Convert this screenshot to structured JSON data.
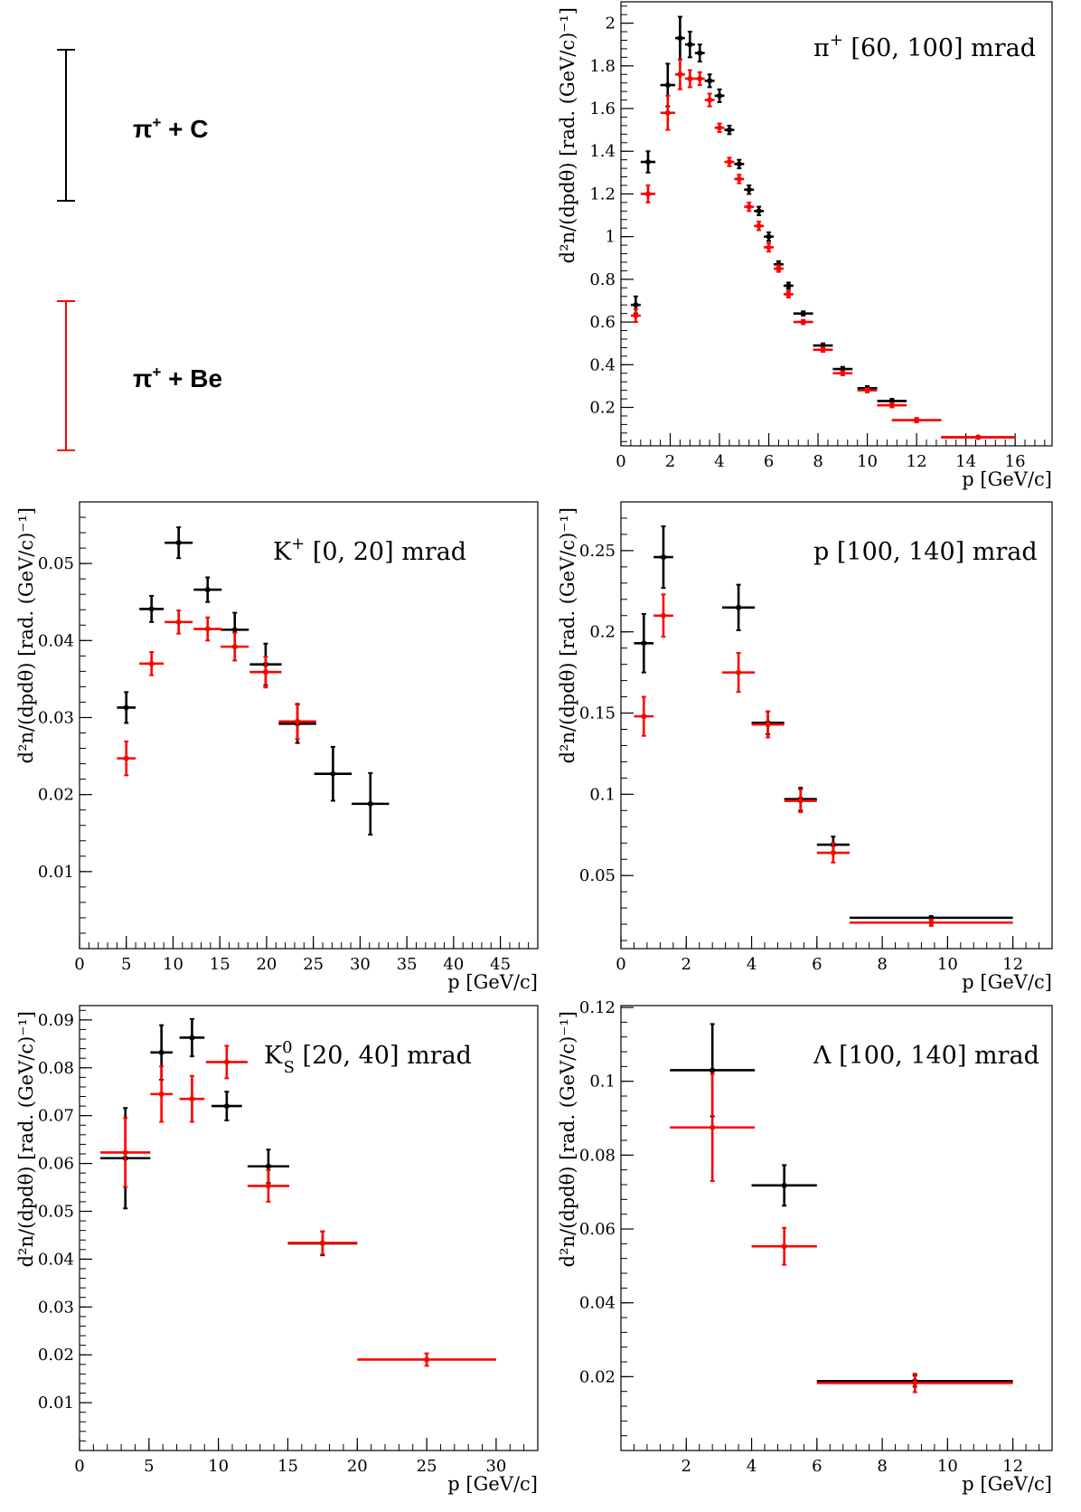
{
  "legend": {
    "entries": [
      {
        "particle": "π",
        "charge": "+",
        "suffix": " + C",
        "color": "#000000"
      },
      {
        "particle": "π",
        "charge": "+",
        "suffix": " + Be",
        "color": "#ff0000"
      }
    ]
  },
  "chart_data": [
    {
      "type": "scatter",
      "title_main": "π",
      "title_sup": "+",
      "title_sub": "",
      "title_rest": " [60, 100] mrad",
      "xlabel": "p [GeV/c]",
      "ylabel": "d²n/(dpdθ) [rad. (GeV/c)⁻¹]",
      "xlim": [
        0,
        17.5
      ],
      "ylim": [
        0.02,
        2.1
      ],
      "xticks": [
        0,
        2,
        4,
        6,
        8,
        10,
        12,
        14,
        16
      ],
      "xtick_labels": [
        "0",
        "2",
        "4",
        "6",
        "8",
        "10",
        "12",
        "14",
        "16"
      ],
      "yticks": [
        0.2,
        0.4,
        0.6,
        0.8,
        1,
        1.2,
        1.4,
        1.6,
        1.8,
        2
      ],
      "ytick_labels": [
        "0.2",
        "0.4",
        "0.6",
        "0.8",
        "1",
        "1.2",
        "1.4",
        "1.6",
        "1.8",
        "2"
      ],
      "series": [
        {
          "name": "π+ + C",
          "color": "#000000",
          "x": [
            0.6,
            1.1,
            1.9,
            2.4,
            2.8,
            3.2,
            3.6,
            4.0,
            4.4,
            4.8,
            5.2,
            5.6,
            6.0,
            6.4,
            6.8,
            7.4,
            8.2,
            9.0,
            10.0,
            11.0,
            12.0,
            14.5
          ],
          "y": [
            0.68,
            1.35,
            1.71,
            1.93,
            1.9,
            1.86,
            1.73,
            1.66,
            1.5,
            1.34,
            1.22,
            1.12,
            1.0,
            0.87,
            0.77,
            0.64,
            0.49,
            0.38,
            0.29,
            0.23,
            0.14,
            0.06
          ],
          "xerr": [
            0.2,
            0.3,
            0.3,
            0.2,
            0.2,
            0.2,
            0.2,
            0.2,
            0.2,
            0.2,
            0.2,
            0.2,
            0.2,
            0.2,
            0.2,
            0.4,
            0.4,
            0.4,
            0.4,
            0.6,
            1.0,
            1.5
          ],
          "yerr": [
            0.04,
            0.05,
            0.1,
            0.1,
            0.06,
            0.04,
            0.03,
            0.03,
            0.02,
            0.02,
            0.02,
            0.02,
            0.02,
            0.015,
            0.015,
            0.01,
            0.01,
            0.01,
            0.01,
            0.01,
            0.01,
            0.005
          ]
        },
        {
          "name": "π+ + Be",
          "color": "#ff0000",
          "x": [
            0.6,
            1.1,
            1.9,
            2.4,
            2.8,
            3.2,
            3.6,
            4.0,
            4.4,
            4.8,
            5.2,
            5.6,
            6.0,
            6.4,
            6.8,
            7.4,
            8.2,
            9.0,
            10.0,
            11.0,
            12.0,
            14.5
          ],
          "y": [
            0.63,
            1.2,
            1.58,
            1.76,
            1.74,
            1.74,
            1.64,
            1.51,
            1.35,
            1.27,
            1.14,
            1.05,
            0.95,
            0.85,
            0.73,
            0.6,
            0.47,
            0.36,
            0.28,
            0.21,
            0.14,
            0.06
          ],
          "xerr": [
            0.2,
            0.3,
            0.3,
            0.2,
            0.2,
            0.2,
            0.2,
            0.2,
            0.2,
            0.2,
            0.2,
            0.2,
            0.2,
            0.2,
            0.2,
            0.4,
            0.4,
            0.4,
            0.4,
            0.6,
            1.0,
            1.5
          ],
          "yerr": [
            0.03,
            0.04,
            0.08,
            0.07,
            0.04,
            0.03,
            0.03,
            0.02,
            0.02,
            0.02,
            0.02,
            0.02,
            0.02,
            0.015,
            0.015,
            0.01,
            0.01,
            0.01,
            0.01,
            0.01,
            0.01,
            0.005
          ]
        }
      ]
    },
    {
      "type": "scatter",
      "title_main": "K",
      "title_sup": "+",
      "title_sub": "",
      "title_rest": " [0, 20] mrad",
      "xlabel": "p [GeV/c]",
      "ylabel": "d²n/(dpdθ) [rad. (GeV/c)⁻¹]",
      "xlim": [
        0,
        49
      ],
      "ylim": [
        0,
        0.058
      ],
      "xticks": [
        0,
        5,
        10,
        15,
        20,
        25,
        30,
        35,
        40,
        45
      ],
      "xtick_labels": [
        "0",
        "5",
        "10",
        "15",
        "20",
        "25",
        "30",
        "35",
        "40",
        "45"
      ],
      "yticks": [
        0.01,
        0.02,
        0.03,
        0.04,
        0.05
      ],
      "ytick_labels": [
        "0.01",
        "0.02",
        "0.03",
        "0.04",
        "0.05"
      ],
      "series": [
        {
          "name": "π+ + C",
          "color": "#000000",
          "x": [
            5.0,
            7.7,
            10.6,
            13.7,
            16.6,
            19.9,
            23.3,
            27.1,
            31.1
          ],
          "y": [
            0.0313,
            0.0441,
            0.0527,
            0.0466,
            0.0414,
            0.0369,
            0.0292,
            0.0227,
            0.0188
          ],
          "xerr": [
            1.0,
            1.3,
            1.5,
            1.5,
            1.5,
            1.7,
            2.0,
            2.0,
            2.0
          ],
          "yerr": [
            0.002,
            0.0017,
            0.002,
            0.0016,
            0.0022,
            0.0027,
            0.0025,
            0.0035,
            0.004
          ]
        },
        {
          "name": "π+ + Be",
          "color": "#ff0000",
          "x": [
            5.0,
            7.7,
            10.6,
            13.7,
            16.6,
            19.9,
            23.3
          ],
          "y": [
            0.0247,
            0.037,
            0.0424,
            0.0415,
            0.0392,
            0.0359,
            0.0295
          ],
          "xerr": [
            1.0,
            1.3,
            1.5,
            1.5,
            1.5,
            1.7,
            2.0
          ],
          "yerr": [
            0.0022,
            0.0015,
            0.0015,
            0.0015,
            0.0018,
            0.002,
            0.0023
          ]
        }
      ]
    },
    {
      "type": "scatter",
      "title_main": "p",
      "title_sup": "",
      "title_sub": "",
      "title_rest": " [100, 140] mrad",
      "xlabel": "p [GeV/c]",
      "ylabel": "d²n/(dpdθ) [rad. (GeV/c)⁻¹]",
      "xlim": [
        0,
        13.2
      ],
      "ylim": [
        0.005,
        0.28
      ],
      "xticks": [
        0,
        2,
        4,
        6,
        8,
        10,
        12
      ],
      "xtick_labels": [
        "0",
        "2",
        "4",
        "6",
        "8",
        "10",
        "12"
      ],
      "yticks": [
        0.05,
        0.1,
        0.15,
        0.2,
        0.25
      ],
      "ytick_labels": [
        "0.05",
        "0.1",
        "0.15",
        "0.2",
        "0.25"
      ],
      "series": [
        {
          "name": "π+ + C",
          "color": "#000000",
          "x": [
            0.7,
            1.3,
            3.6,
            4.5,
            5.5,
            6.5,
            9.5
          ],
          "y": [
            0.193,
            0.246,
            0.215,
            0.144,
            0.097,
            0.069,
            0.024
          ],
          "xerr": [
            0.3,
            0.3,
            0.5,
            0.5,
            0.5,
            0.5,
            2.5
          ],
          "yerr": [
            0.018,
            0.019,
            0.014,
            0.007,
            0.007,
            0.005,
            0.001
          ]
        },
        {
          "name": "π+ + Be",
          "color": "#ff0000",
          "x": [
            0.7,
            1.3,
            3.6,
            4.5,
            5.5,
            6.5,
            9.5
          ],
          "y": [
            0.148,
            0.21,
            0.175,
            0.143,
            0.096,
            0.064,
            0.021
          ],
          "xerr": [
            0.3,
            0.3,
            0.5,
            0.5,
            0.5,
            0.5,
            2.5
          ],
          "yerr": [
            0.012,
            0.013,
            0.012,
            0.008,
            0.007,
            0.006,
            0.002
          ]
        }
      ]
    },
    {
      "type": "scatter",
      "title_main": "K",
      "title_sup": "0",
      "title_sub": "S",
      "title_rest": " [20, 40] mrad",
      "xlabel": "p [GeV/c]",
      "ylabel": "d²n/(dpdθ) [rad. (GeV/c)⁻¹]",
      "xlim": [
        0,
        33
      ],
      "ylim": [
        0,
        0.093
      ],
      "xticks": [
        0,
        5,
        10,
        15,
        20,
        25,
        30
      ],
      "xtick_labels": [
        "0",
        "5",
        "10",
        "15",
        "20",
        "25",
        "30"
      ],
      "yticks": [
        0.01,
        0.02,
        0.03,
        0.04,
        0.05,
        0.06,
        0.07,
        0.08,
        0.09
      ],
      "ytick_labels": [
        "0.01",
        "0.02",
        "0.03",
        "0.04",
        "0.05",
        "0.06",
        "0.07",
        "0.08",
        "0.09"
      ],
      "series": [
        {
          "name": "π+ + C",
          "color": "#000000",
          "x": [
            3.3,
            5.9,
            8.1,
            10.6,
            13.6,
            17.5
          ],
          "y": [
            0.0611,
            0.0832,
            0.0863,
            0.072,
            0.0594,
            0.0433
          ],
          "xerr": [
            1.8,
            0.8,
            0.9,
            1.1,
            1.5,
            2.5
          ],
          "yerr": [
            0.0105,
            0.0057,
            0.0039,
            0.003,
            0.0035,
            0.0025
          ]
        },
        {
          "name": "π+ + Be",
          "color": "#ff0000",
          "x": [
            3.3,
            5.9,
            8.1,
            10.6,
            13.6,
            17.5,
            25.0
          ],
          "y": [
            0.0623,
            0.0745,
            0.0735,
            0.0812,
            0.0553,
            0.0434,
            0.019
          ],
          "xerr": [
            1.8,
            0.8,
            0.9,
            1.5,
            1.5,
            2.5,
            5.0
          ],
          "yerr": [
            0.0072,
            0.0058,
            0.0048,
            0.0034,
            0.0033,
            0.0024,
            0.0013
          ]
        }
      ]
    },
    {
      "type": "scatter",
      "title_main": "Λ",
      "title_sup": "",
      "title_sub": "",
      "title_rest": " [100, 140] mrad",
      "xlabel": "p [GeV/c]",
      "ylabel": "d²n/(dpdθ) [rad. (GeV/c)⁻¹]",
      "xlim": [
        0,
        13.2
      ],
      "ylim": [
        0.0,
        0.1205
      ],
      "xticks": [
        2,
        4,
        6,
        8,
        10,
        12
      ],
      "xtick_labels": [
        "2",
        "4",
        "6",
        "8",
        "10",
        "12"
      ],
      "yticks": [
        0.02,
        0.04,
        0.06,
        0.08,
        0.1,
        0.12
      ],
      "ytick_labels": [
        "0.02",
        "0.04",
        "0.06",
        "0.08",
        "0.1",
        "0.12"
      ],
      "series": [
        {
          "name": "π+ + C",
          "color": "#000000",
          "x": [
            2.8,
            5.0,
            9.0
          ],
          "y": [
            0.103,
            0.0718,
            0.0188
          ],
          "xerr": [
            1.3,
            1.0,
            3.0
          ],
          "yerr": [
            0.0125,
            0.0055,
            0.0015
          ]
        },
        {
          "name": "π+ + Be",
          "color": "#ff0000",
          "x": [
            2.8,
            5.0,
            9.0
          ],
          "y": [
            0.0875,
            0.0553,
            0.0183
          ],
          "xerr": [
            1.3,
            1.0,
            3.0
          ],
          "yerr": [
            0.0145,
            0.005,
            0.0025
          ]
        }
      ]
    }
  ]
}
